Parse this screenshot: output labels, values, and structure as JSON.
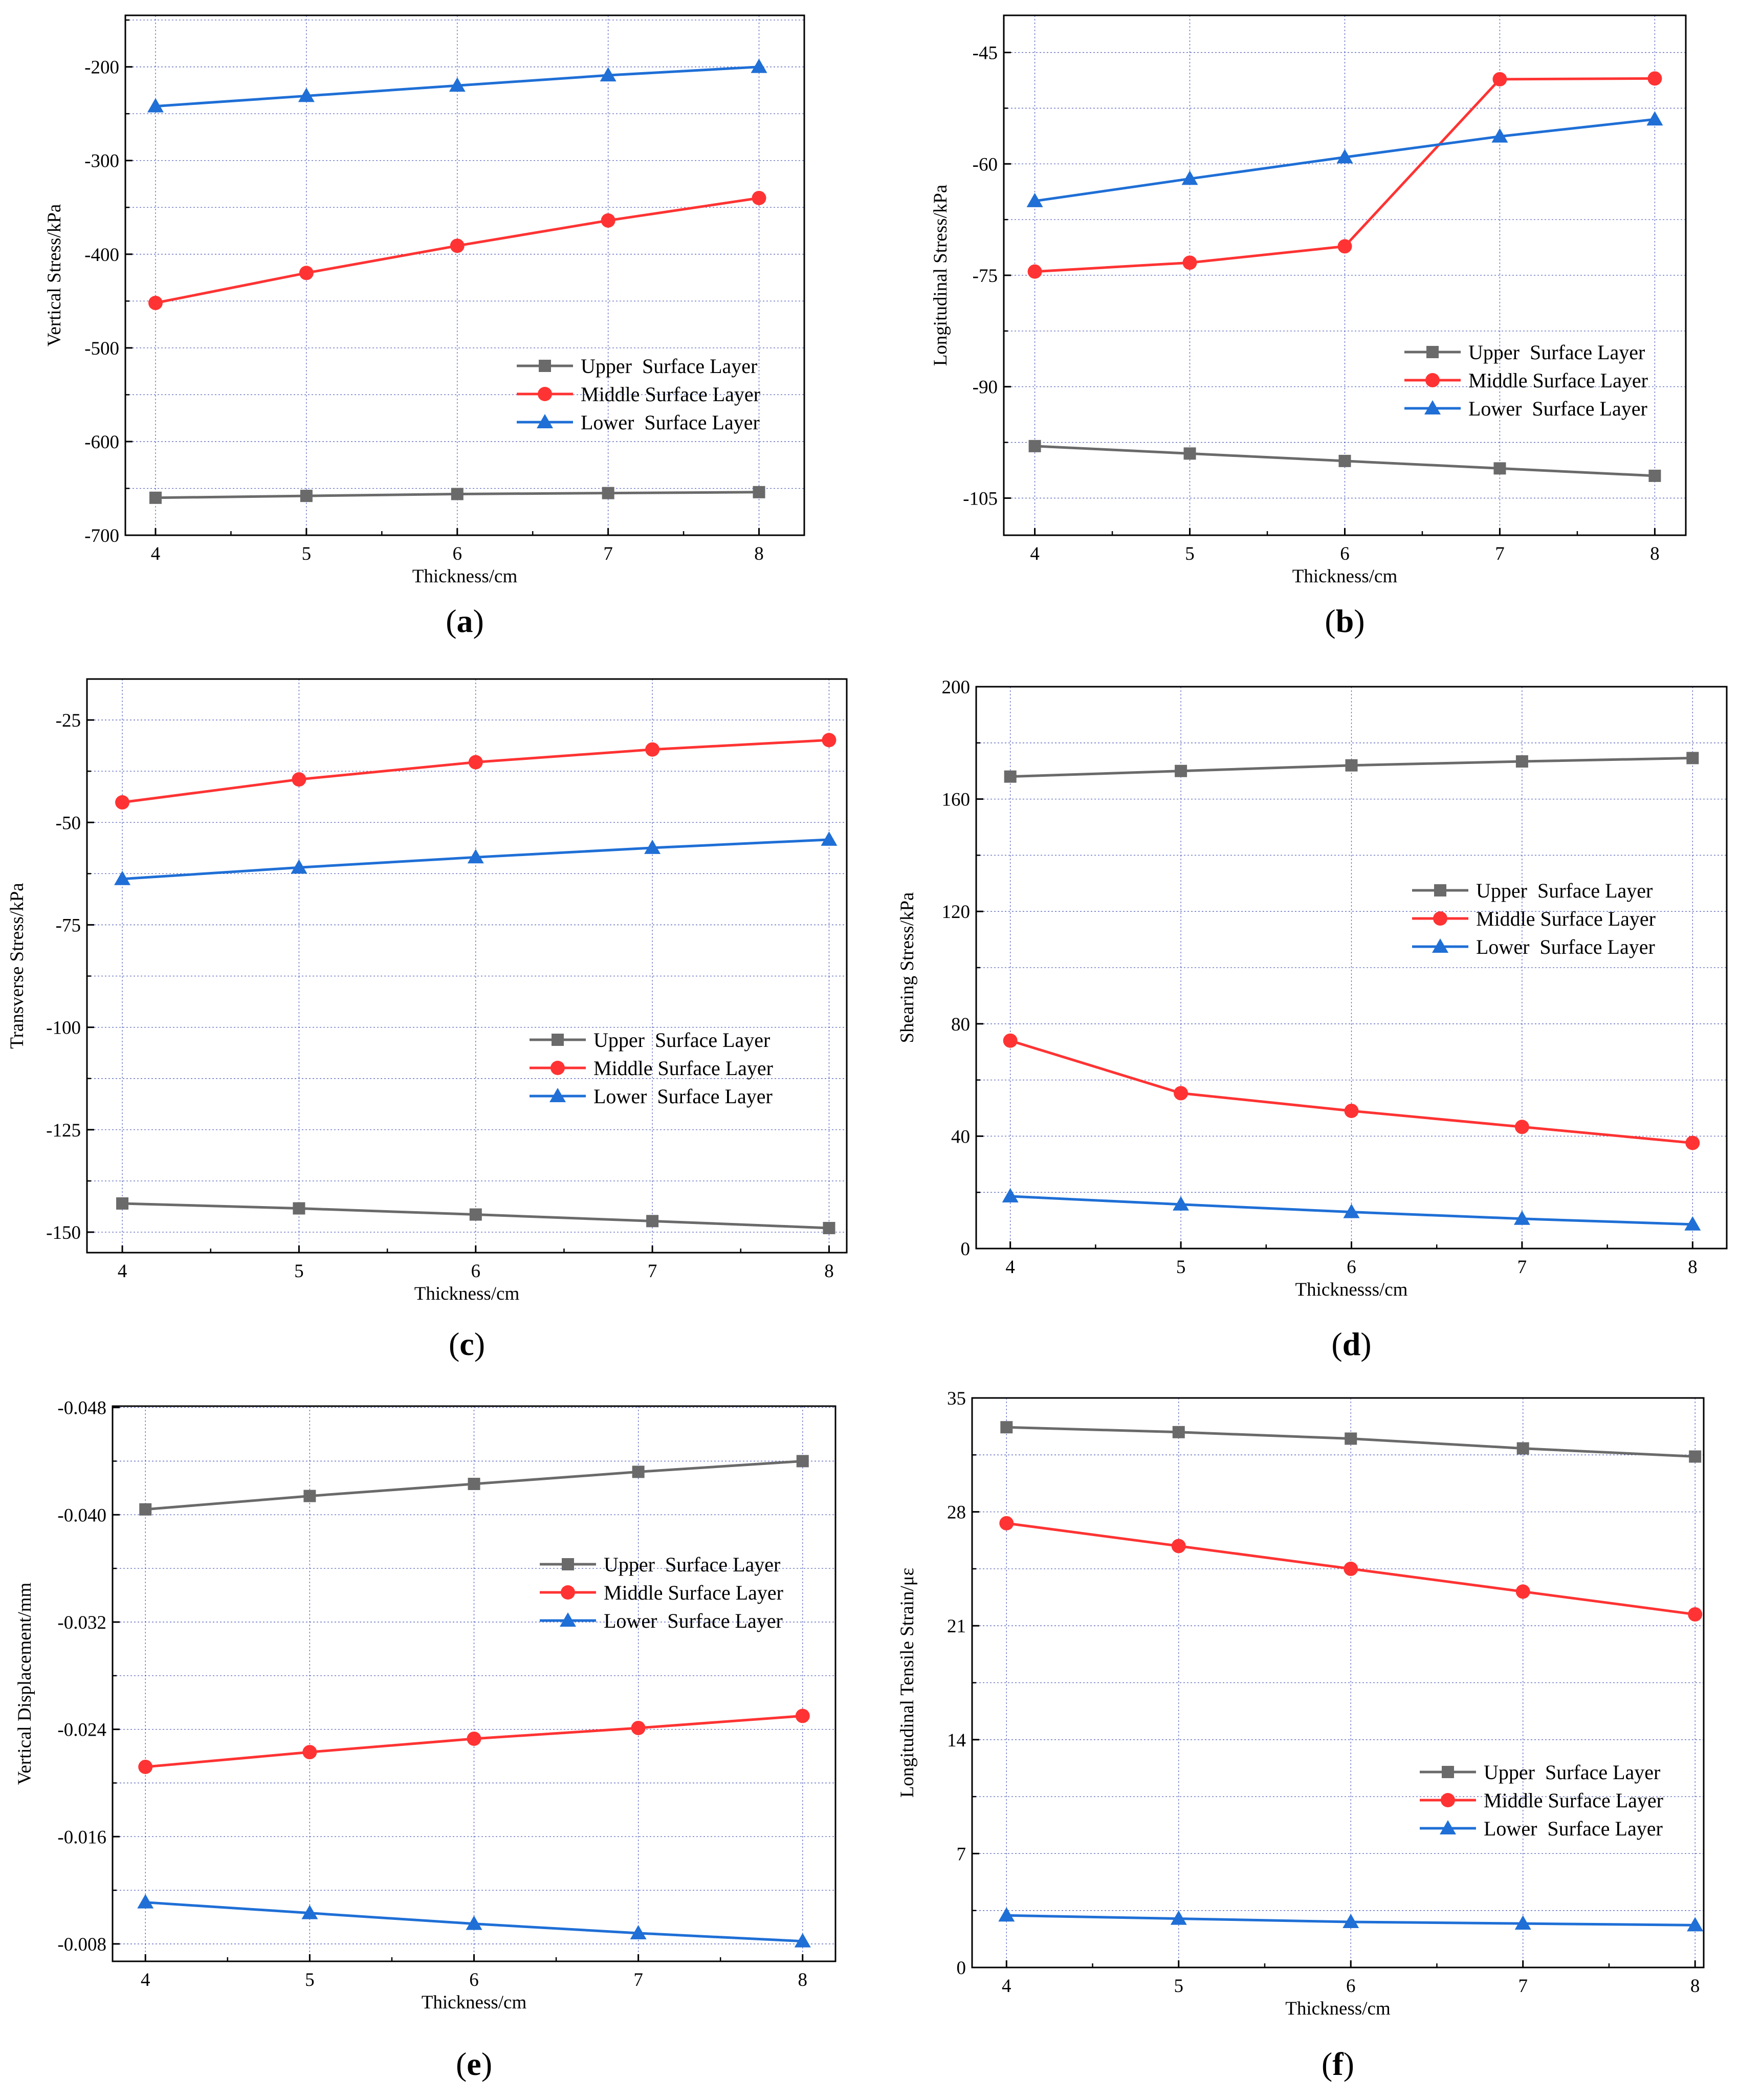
{
  "chart_data": [
    {
      "id": "a",
      "type": "line",
      "caption": "a",
      "xlabel": "Thickness/cm",
      "ylabel": "Vertical Stress/kPa",
      "x": [
        4,
        5,
        6,
        7,
        8
      ],
      "xlim": [
        3.8,
        8.3
      ],
      "ylim": [
        -700,
        -145
      ],
      "yticks": [
        -700,
        -600,
        -500,
        -400,
        -300,
        -200
      ],
      "ytick_labels": [
        "-700",
        "-600",
        "-500",
        "-400",
        "-300",
        "-200"
      ],
      "series": [
        {
          "name": "Upper  Surface Layer",
          "values": [
            -660,
            -658,
            -656,
            -655,
            -654
          ]
        },
        {
          "name": "Middle Surface Layer",
          "values": [
            -452,
            -420,
            -391,
            -364,
            -340
          ]
        },
        {
          "name": "Lower  Surface Layer",
          "values": [
            -242,
            -231,
            -220,
            -209,
            -200
          ]
        }
      ],
      "legend": "lower-right",
      "grid": true
    },
    {
      "id": "b",
      "type": "line",
      "caption": "b",
      "xlabel": "Thickness/cm",
      "ylabel": "Longitudinal Stress/kPa",
      "x": [
        4,
        5,
        6,
        7,
        8
      ],
      "xlim": [
        3.8,
        8.2
      ],
      "ylim": [
        -110,
        -40
      ],
      "yticks": [
        -105,
        -90,
        -75,
        -60,
        -45
      ],
      "ytick_labels": [
        "-105",
        "-90",
        "-75",
        "-60",
        "-45"
      ],
      "series": [
        {
          "name": "Upper  Surface Layer",
          "values": [
            -98,
            -99,
            -100,
            -101,
            -102
          ]
        },
        {
          "name": "Middle Surface Layer",
          "values": [
            -74.5,
            -73.3,
            -71.1,
            -48.6,
            -48.5
          ]
        },
        {
          "name": "Lower  Surface Layer",
          "values": [
            -65,
            -62,
            -59.1,
            -56.3,
            -54
          ]
        }
      ],
      "legend": "center-right",
      "grid": true
    },
    {
      "id": "c",
      "type": "line",
      "caption": "c",
      "xlabel": "Thickness/cm",
      "ylabel": "Transverse Stress/kPa",
      "x": [
        4,
        5,
        6,
        7,
        8
      ],
      "xlim": [
        3.8,
        8.1
      ],
      "ylim": [
        -155,
        -15
      ],
      "yticks": [
        -150,
        -125,
        -100,
        -75,
        -50,
        -25
      ],
      "ytick_labels": [
        "-150",
        "-125",
        "-100",
        "-75",
        "-50",
        "-25"
      ],
      "series": [
        {
          "name": "Upper  Surface Layer",
          "values": [
            -143,
            -144.2,
            -145.7,
            -147.3,
            -149
          ]
        },
        {
          "name": "Middle Surface Layer",
          "values": [
            -45.1,
            -39.5,
            -35.3,
            -32.2,
            -29.9
          ]
        },
        {
          "name": "Lower  Surface Layer",
          "values": [
            -63.8,
            -61,
            -58.5,
            -56.2,
            -54.2
          ]
        }
      ],
      "legend": "lower-right",
      "grid": true
    },
    {
      "id": "d",
      "type": "line",
      "caption": "d",
      "xlabel": "Thicknesss/cm",
      "ylabel": "Shearing Stress/kPa",
      "x": [
        4,
        5,
        6,
        7,
        8
      ],
      "xlim": [
        3.8,
        8.2
      ],
      "ylim": [
        0,
        200
      ],
      "yticks": [
        0,
        40,
        80,
        120,
        160,
        200
      ],
      "ytick_labels": [
        "0",
        "40",
        "80",
        "120",
        "160",
        "200"
      ],
      "series": [
        {
          "name": "Upper  Surface Layer",
          "values": [
            168,
            170,
            172,
            173.4,
            174.6
          ]
        },
        {
          "name": "Middle Surface Layer",
          "values": [
            74,
            55.3,
            49,
            43.3,
            37.6
          ]
        },
        {
          "name": "Lower  Surface Layer",
          "values": [
            18.6,
            15.7,
            13,
            10.6,
            8.6
          ]
        }
      ],
      "legend": "center-right",
      "grid": true
    },
    {
      "id": "e",
      "type": "line",
      "caption": "e",
      "xlabel": "Thickness/cm",
      "ylabel": "Vertical Displacement/mm",
      "x": [
        4,
        5,
        6,
        7,
        8
      ],
      "xlim": [
        3.8,
        8.2
      ],
      "ylim": [
        -0.0067,
        -0.0481
      ],
      "yticks": [
        -0.008,
        -0.016,
        -0.024,
        -0.032,
        -0.04,
        -0.048
      ],
      "ytick_labels": [
        "-0.008",
        "-0.016",
        "-0.024",
        "-0.032",
        "-0.040",
        "-0.048"
      ],
      "series": [
        {
          "name": "Upper  Surface Layer",
          "values": [
            -0.0404,
            -0.0414,
            -0.0423,
            -0.0432,
            -0.044
          ]
        },
        {
          "name": "Middle Surface Layer",
          "values": [
            -0.0212,
            -0.0223,
            -0.0233,
            -0.0241,
            -0.025
          ]
        },
        {
          "name": "Lower  Surface Layer",
          "values": [
            -0.0111,
            -0.0103,
            -0.0095,
            -0.0088,
            -0.0082
          ]
        }
      ],
      "legend": "upper-right",
      "grid": true
    },
    {
      "id": "f",
      "type": "line",
      "caption": "f",
      "xlabel": "Thickness/cm",
      "ylabel": "Longitudinal Tensile Strain/με",
      "x": [
        4,
        5,
        6,
        7,
        8
      ],
      "xlim": [
        3.8,
        8.05
      ],
      "ylim": [
        0,
        35
      ],
      "yticks": [
        0,
        7,
        14,
        21,
        28,
        35
      ],
      "ytick_labels": [
        "0",
        "7",
        "14",
        "21",
        "28",
        "35"
      ],
      "series": [
        {
          "name": "Upper  Surface Layer",
          "values": [
            33.2,
            32.9,
            32.5,
            31.9,
            31.4
          ]
        },
        {
          "name": "Middle Surface Layer",
          "values": [
            27.3,
            25.9,
            24.5,
            23.1,
            21.7
          ]
        },
        {
          "name": "Lower  Surface Layer",
          "values": [
            3.2,
            3,
            2.8,
            2.7,
            2.6
          ]
        }
      ],
      "legend": "lower-right",
      "grid": true
    }
  ],
  "colors": {
    "upper": "#6a6a6a",
    "middle": "#ff3333",
    "lower": "#1f6fd6",
    "grid": "#2233aa"
  }
}
